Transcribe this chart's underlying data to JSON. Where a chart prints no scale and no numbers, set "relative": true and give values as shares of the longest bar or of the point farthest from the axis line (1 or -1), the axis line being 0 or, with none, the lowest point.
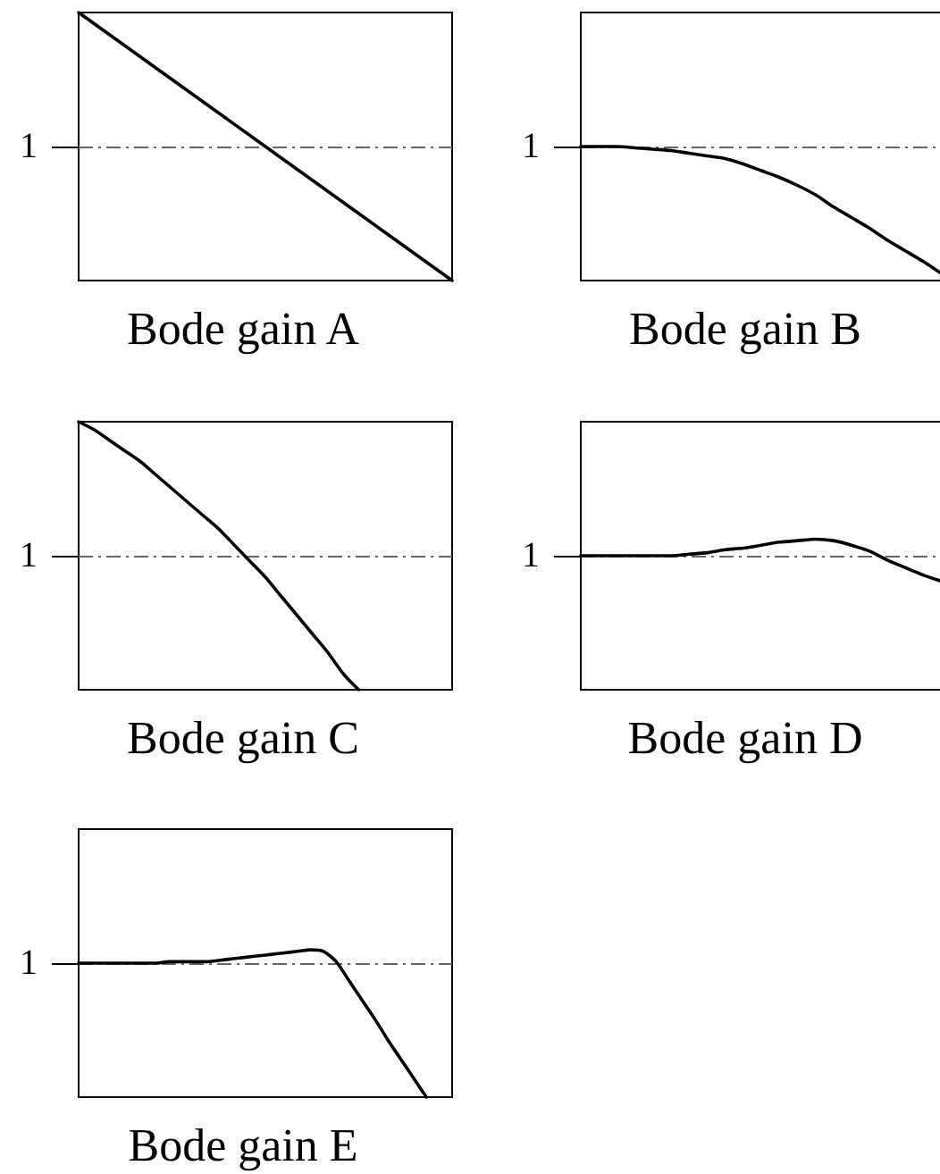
{
  "chart_data": [
    {
      "type": "line",
      "xlabel": "Bode gain A",
      "relative": true,
      "marker": "none",
      "categories": [
        null,
        null,
        null,
        null,
        null
      ],
      "values": [
        1,
        0.75,
        0.5,
        0.25,
        0
      ],
      "color": "#000000",
      "ref_lines": [
        {
          "axis": "y",
          "value": 0.5,
          "label": "1",
          "color": "#666666",
          "line_style": "dashdot"
        }
      ]
    },
    {
      "type": "line",
      "xlabel": "Bode gain B",
      "relative": true,
      "marker": "none",
      "categories": [
        null,
        null,
        null,
        null,
        null,
        null,
        null,
        null,
        null,
        null,
        null,
        null,
        null,
        null,
        null,
        null,
        null,
        null,
        null,
        null,
        null
      ],
      "values": [
        1,
        1,
        1,
        0.99,
        0.98,
        0.97,
        0.95,
        0.93,
        0.91,
        0.87,
        0.82,
        0.77,
        0.71,
        0.64,
        0.55,
        0.47,
        0.39,
        0.3,
        0.22,
        0.14,
        0.05
      ],
      "color": "#000000",
      "ref_lines": [
        {
          "axis": "y",
          "value": 1,
          "label": "1",
          "color": "#666666",
          "line_style": "dashdot"
        }
      ]
    },
    {
      "type": "line",
      "xlabel": "Bode gain C",
      "relative": true,
      "marker": "none",
      "categories": [
        null,
        null,
        null,
        null,
        null,
        null,
        null,
        null,
        null,
        null,
        null,
        null,
        null,
        null,
        null,
        null,
        null,
        null,
        null,
        null,
        null,
        null,
        null,
        null,
        null
      ],
      "values": [
        1,
        0.97,
        0.93,
        0.89,
        0.85,
        0.8,
        0.75,
        0.7,
        0.65,
        0.6,
        0.54,
        0.48,
        0.42,
        0.35,
        0.28,
        0.21,
        0.14,
        0.06,
        0,
        null,
        null,
        null,
        null,
        null,
        null
      ],
      "color": "#000000",
      "ref_lines": [
        {
          "axis": "y",
          "value": 0.5,
          "label": "1",
          "color": "#666666",
          "line_style": "dashdot"
        }
      ]
    },
    {
      "type": "line",
      "xlabel": "Bode gain D",
      "relative": true,
      "marker": "none",
      "categories": [
        null,
        null,
        null,
        null,
        null,
        null,
        null,
        null,
        null,
        null,
        null,
        null,
        null,
        null,
        null,
        null,
        null,
        null,
        null,
        null,
        null
      ],
      "values": [
        0.89,
        0.89,
        0.89,
        0.89,
        0.89,
        0.89,
        0.9,
        0.91,
        0.93,
        0.94,
        0.96,
        0.98,
        0.99,
        1,
        0.99,
        0.96,
        0.92,
        0.86,
        0.81,
        0.76,
        0.72
      ],
      "color": "#000000",
      "ref_lines": [
        {
          "axis": "y",
          "value": 0.89,
          "label": "1",
          "color": "#666666",
          "line_style": "dashdot"
        }
      ]
    },
    {
      "type": "line",
      "xlabel": "Bode gain E",
      "relative": true,
      "marker": "none",
      "categories": [
        null,
        null,
        null,
        null,
        null,
        null,
        null,
        null,
        null,
        null,
        null,
        null,
        null,
        null,
        null,
        null,
        null,
        null,
        null,
        null,
        null,
        null,
        null,
        null,
        null,
        null,
        null,
        null,
        null,
        null
      ],
      "values": [
        0.91,
        0.91,
        0.91,
        0.91,
        0.91,
        0.91,
        0.91,
        0.92,
        0.92,
        0.92,
        0.92,
        0.93,
        0.94,
        0.95,
        0.96,
        0.97,
        0.98,
        0.99,
        1,
        0.99,
        0.92,
        0.79,
        0.66,
        0.53,
        0.39,
        0.26,
        0.13,
        0,
        null,
        null
      ],
      "color": "#000000",
      "ref_lines": [
        {
          "axis": "y",
          "value": 0.91,
          "label": "1",
          "color": "#666666",
          "line_style": "dashdot"
        }
      ]
    }
  ]
}
